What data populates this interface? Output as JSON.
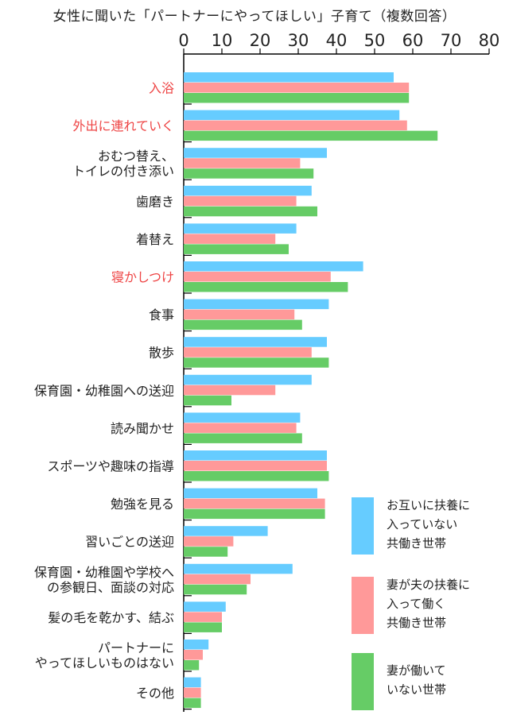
{
  "colors": {
    "series1": "#66ccff",
    "series2": "#ff9999",
    "series3": "#66cc66",
    "highlight_label": "#ee4444",
    "label": "#222222",
    "axis": "#000000"
  },
  "chart_data": {
    "type": "bar",
    "orientation": "horizontal",
    "title": "女性に聞いた「パートナーにやってほしい」子育て（複数回答）",
    "xlabel": "",
    "ylabel": "",
    "xlim": [
      0,
      80
    ],
    "x_ticks": [
      0,
      10,
      20,
      30,
      40,
      50,
      60,
      70,
      80
    ],
    "grid": false,
    "legend_position": "bottom-right",
    "categories": [
      "入浴",
      "外出に連れていく",
      "おむつ替え、\nトイレの付き添い",
      "歯磨き",
      "着替え",
      "寝かしつけ",
      "食事",
      "散歩",
      "保育園・幼稚園への送迎",
      "読み聞かせ",
      "スポーツや趣味の指導",
      "勉強を見る",
      "習いごとの送迎",
      "保育園・幼稚園や学校へ\nの参観日、面談の対応",
      "髪の毛を乾かす、結ぶ",
      "パートナーに\nやってほしいものはない",
      "その他"
    ],
    "highlighted_categories": [
      "入浴",
      "外出に連れていく",
      "寝かしつけ"
    ],
    "series": [
      {
        "name": "お互いに扶養に\n入っていない\n共働き世帯",
        "values": [
          55,
          56.5,
          37.5,
          33.5,
          29.5,
          47,
          38,
          37.5,
          33.5,
          30.5,
          37.5,
          35,
          22,
          28.5,
          11,
          6.5,
          4.5
        ]
      },
      {
        "name": "妻が夫の扶養に\n入って働く\n共働き世帯",
        "values": [
          59,
          58.5,
          30.5,
          29.5,
          24,
          38.5,
          29,
          33.5,
          24,
          29.5,
          37.5,
          37,
          13,
          17.5,
          10,
          5,
          4.5
        ]
      },
      {
        "name": "妻が働いて\nいない世帯",
        "values": [
          59,
          66.5,
          34,
          35,
          27.5,
          43,
          31,
          38,
          12.5,
          31,
          38,
          37,
          11.5,
          16.5,
          10,
          4,
          4.5
        ]
      }
    ]
  }
}
